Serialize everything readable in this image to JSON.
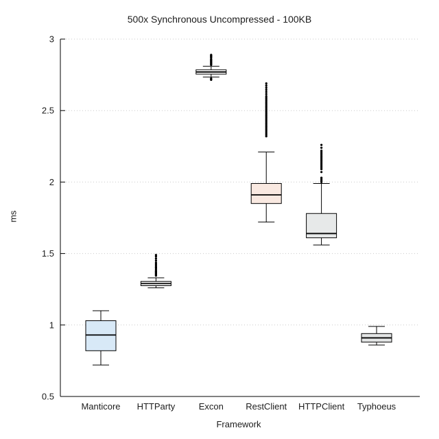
{
  "chart_data": {
    "type": "boxplot",
    "title": "500x Synchronous Uncompressed - 100KB",
    "xlabel": "Framework",
    "ylabel": "ms",
    "ylim": [
      0.5,
      3
    ],
    "yticks": [
      0.5,
      1,
      1.5,
      2,
      2.5,
      3
    ],
    "grid": true,
    "legend": "none",
    "categories": [
      "Manticore",
      "HTTParty",
      "Excon",
      "RestClient",
      "HTTPClient",
      "Typhoeus"
    ],
    "series": [
      {
        "name": "Manticore",
        "low": 0.72,
        "q1": 0.82,
        "median": 0.93,
        "q3": 1.03,
        "high": 1.1,
        "outliers": [],
        "fill": "#d8e9f7"
      },
      {
        "name": "HTTParty",
        "low": 1.26,
        "q1": 1.275,
        "median": 1.29,
        "q3": 1.305,
        "high": 1.33,
        "outliers": [
          1.345,
          1.35,
          1.355,
          1.36,
          1.365,
          1.37,
          1.375,
          1.38,
          1.39,
          1.4,
          1.405,
          1.415,
          1.425,
          1.435,
          1.45,
          1.465,
          1.48,
          1.49
        ],
        "fill": "#f2f2f2"
      },
      {
        "name": "Excon",
        "low": 2.735,
        "q1": 2.755,
        "median": 2.77,
        "q3": 2.785,
        "high": 2.81,
        "outliers": [
          2.715,
          2.72,
          2.725,
          2.82,
          2.825,
          2.83,
          2.835,
          2.84,
          2.845,
          2.85,
          2.855,
          2.86,
          2.87,
          2.875,
          2.88,
          2.885,
          2.89
        ],
        "fill": "#ffffff"
      },
      {
        "name": "RestClient",
        "low": 1.72,
        "q1": 1.85,
        "median": 1.91,
        "q3": 1.99,
        "high": 2.21,
        "outliers": [
          2.32,
          2.33,
          2.34,
          2.35,
          2.36,
          2.37,
          2.38,
          2.39,
          2.4,
          2.41,
          2.42,
          2.43,
          2.44,
          2.45,
          2.46,
          2.47,
          2.48,
          2.49,
          2.5,
          2.51,
          2.52,
          2.53,
          2.54,
          2.55,
          2.56,
          2.57,
          2.58,
          2.59,
          2.6,
          2.615,
          2.63,
          2.645,
          2.66,
          2.675,
          2.69
        ],
        "fill": "#f9e9e1"
      },
      {
        "name": "HTTPClient",
        "low": 1.56,
        "q1": 1.61,
        "median": 1.64,
        "q3": 1.78,
        "high": 1.99,
        "outliers": [
          2.0,
          2.01,
          2.02,
          2.03,
          2.07,
          2.09,
          2.1,
          2.11,
          2.12,
          2.13,
          2.14,
          2.15,
          2.16,
          2.17,
          2.18,
          2.19,
          2.2,
          2.21,
          2.22,
          2.24,
          2.26
        ],
        "fill": "#e7e9e9"
      },
      {
        "name": "Typhoeus",
        "low": 0.86,
        "q1": 0.88,
        "median": 0.91,
        "q3": 0.94,
        "high": 0.99,
        "outliers": [],
        "fill": "#e2e4e4"
      }
    ]
  }
}
